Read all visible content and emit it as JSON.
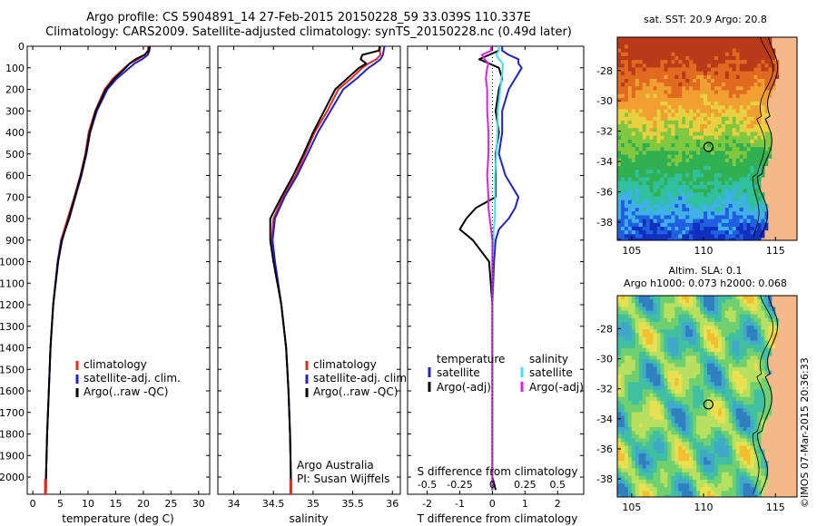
{
  "header": {
    "title_line1": "Argo profile: CS 5904891_14 27-Feb-2015 20150228_59 33.039S 110.337E",
    "title_line2": "Climatology: CARS2009. Satellite-adjusted climatology: synTS_20150228.nc (0.49d later)"
  },
  "colors": {
    "climatology": "#e8271c",
    "satellite": "#2020d0",
    "argo": "#000000",
    "salinity_satellite": "#40e0e8",
    "salinity_argo": "#e020e0"
  },
  "chart_data": [
    {
      "type": "line",
      "panel": "temperature",
      "xlabel": "temperature (deg C)",
      "ylabel": "",
      "xlim": [
        -1,
        32
      ],
      "ylim": [
        2080,
        0
      ],
      "xticks": [
        0,
        5,
        10,
        15,
        20,
        25,
        30
      ],
      "yticks": [
        0,
        100,
        200,
        300,
        400,
        500,
        600,
        700,
        800,
        900,
        1000,
        1100,
        1200,
        1300,
        1400,
        1500,
        1600,
        1700,
        1800,
        1900,
        2000
      ],
      "depths": [
        0,
        20,
        40,
        60,
        80,
        100,
        150,
        200,
        300,
        400,
        500,
        600,
        700,
        800,
        900,
        1000,
        1200,
        1400,
        1600,
        1800,
        2000,
        2060
      ],
      "legend": [
        "climatology",
        "satellite-adj. clim.",
        "Argo(..raw -QC)"
      ],
      "series": [
        {
          "name": "climatology",
          "values": [
            20.9,
            20.8,
            20.3,
            19.0,
            17.6,
            16.6,
            14.5,
            13.0,
            11.3,
            10.1,
            9.5,
            8.6,
            7.5,
            6.3,
            5.1,
            4.5,
            3.7,
            3.2,
            2.9,
            2.6,
            2.4,
            2.3
          ]
        },
        {
          "name": "satellite-adj. clim.",
          "values": [
            21.2,
            21.1,
            20.8,
            19.8,
            18.4,
            17.5,
            15.2,
            13.5,
            11.6,
            10.4,
            9.7,
            8.8,
            7.7,
            6.6,
            5.2,
            4.5,
            3.7,
            3.2,
            2.9,
            2.6,
            2.4,
            2.3
          ]
        },
        {
          "name": "Argo(..raw -QC)",
          "values": [
            21.1,
            21.0,
            20.2,
            18.6,
            17.5,
            16.8,
            14.8,
            13.2,
            11.4,
            10.3,
            9.6,
            8.7,
            7.6,
            6.5,
            5.3,
            4.6,
            3.7,
            3.2,
            2.9,
            2.6,
            2.4,
            2.4
          ]
        }
      ]
    },
    {
      "type": "line",
      "panel": "salinity",
      "xlabel": "salinity",
      "ylabel": "",
      "xlim": [
        33.8,
        36.1
      ],
      "ylim": [
        2080,
        0
      ],
      "xticks": [
        34,
        34.5,
        35,
        35.5,
        36
      ],
      "xticklabels": [
        "34",
        "34.5",
        "35",
        "35.5",
        "36"
      ],
      "depths": [
        0,
        20,
        40,
        60,
        80,
        100,
        150,
        200,
        300,
        400,
        500,
        600,
        700,
        800,
        900,
        1000,
        1200,
        1400,
        1600,
        1800,
        2000,
        2060
      ],
      "legend": [
        "climatology",
        "satellite-adj. clim.",
        "Argo(..raw -QC)"
      ],
      "series": [
        {
          "name": "climatology",
          "values": [
            35.85,
            35.84,
            35.85,
            35.8,
            35.7,
            35.62,
            35.48,
            35.32,
            35.18,
            35.02,
            34.9,
            34.78,
            34.62,
            34.5,
            34.48,
            34.52,
            34.6,
            34.66,
            34.69,
            34.71,
            34.72,
            34.72
          ]
        },
        {
          "name": "satellite-adj. clim.",
          "values": [
            35.9,
            35.89,
            35.88,
            35.85,
            35.78,
            35.7,
            35.55,
            35.38,
            35.22,
            35.06,
            34.93,
            34.8,
            34.64,
            34.52,
            34.49,
            34.52,
            34.6,
            34.66,
            34.69,
            34.71,
            34.72,
            34.72
          ]
        },
        {
          "name": "Argo(..raw -QC)",
          "values": [
            35.84,
            35.83,
            35.62,
            35.6,
            35.67,
            35.58,
            35.43,
            35.28,
            35.14,
            35.0,
            34.88,
            34.75,
            34.6,
            34.46,
            34.46,
            34.5,
            34.6,
            34.66,
            34.69,
            34.71,
            34.72,
            34.72
          ]
        }
      ]
    },
    {
      "type": "line",
      "panel": "difference",
      "xlabel": "T difference from climatology",
      "xlabel_top": "S difference from climatology",
      "xlim": [
        -2.6,
        2.8
      ],
      "ylim": [
        2080,
        0
      ],
      "xticks": [
        -2,
        -1,
        0,
        1,
        2
      ],
      "xticks_top": [
        -2,
        -1,
        0,
        1,
        2
      ],
      "xticklabels_top": [
        "-0.5",
        "-0.25",
        "0",
        "0.25",
        "0.5"
      ],
      "s_scale": 4,
      "depths": [
        0,
        20,
        40,
        60,
        80,
        100,
        150,
        200,
        300,
        400,
        500,
        600,
        700,
        750,
        800,
        850,
        900,
        1000,
        1200,
        1400,
        1600,
        1800,
        2000,
        2060
      ],
      "legend_temperature_title": "temperature",
      "legend_salinity_title": "salinity",
      "legend_temperature": [
        "satellite",
        "Argo(-adj)"
      ],
      "legend_salinity": [
        "satellite",
        "Argo(-adj)"
      ],
      "series": [
        {
          "name": "temperature satellite",
          "values": [
            0.3,
            0.3,
            0.5,
            0.8,
            0.8,
            0.9,
            0.7,
            0.5,
            0.3,
            0.3,
            0.2,
            0.4,
            0.8,
            0.7,
            0.5,
            0.2,
            0.1,
            0.05,
            0,
            0,
            0,
            0,
            0,
            0
          ]
        },
        {
          "name": "temperature Argo(-adj)",
          "values": [
            0.2,
            0.2,
            -0.1,
            -0.4,
            -0.1,
            0.2,
            0.3,
            0.2,
            0.1,
            0.2,
            0.1,
            0.1,
            0.1,
            -0.5,
            -0.8,
            -1.0,
            -0.6,
            -0.1,
            0,
            0,
            0,
            0,
            0,
            0.1
          ]
        },
        {
          "name": "salinity satellite",
          "values": [
            0.05,
            0.05,
            0.03,
            0.05,
            0.08,
            0.08,
            0.07,
            0.06,
            0.04,
            0.04,
            0.03,
            0.02,
            0.02,
            0.02,
            0.02,
            0.01,
            0.01,
            0,
            0,
            0,
            0,
            0,
            0,
            0
          ]
        },
        {
          "name": "salinity Argo(-adj)",
          "values": [
            -0.01,
            -0.01,
            -0.08,
            -0.06,
            -0.03,
            -0.04,
            -0.05,
            -0.04,
            -0.04,
            -0.03,
            -0.03,
            -0.04,
            -0.03,
            -0.03,
            -0.02,
            -0.01,
            0,
            0,
            0,
            0,
            0,
            0,
            0,
            0
          ]
        }
      ]
    },
    {
      "type": "heatmap",
      "panel": "sst_map",
      "title": "sat. SST: 20.9 Argo: 20.8",
      "xlim": [
        104,
        116.5
      ],
      "ylim": [
        -39.2,
        -25.8
      ],
      "xticks": [
        105,
        110,
        115
      ],
      "yticks": [
        -28,
        -30,
        -32,
        -34,
        -36,
        -38
      ],
      "argo_position": {
        "lon": 110.337,
        "lat": -33.039
      }
    },
    {
      "type": "heatmap",
      "panel": "sla_map",
      "title_line1": "Altim. SLA: 0.1",
      "title_line2": "Argo h1000: 0.073 h2000: 0.068",
      "xlim": [
        104,
        116.5
      ],
      "ylim": [
        -39.2,
        -25.8
      ],
      "xticks": [
        105,
        110,
        115
      ],
      "yticks": [
        -28,
        -30,
        -32,
        -34,
        -36,
        -38
      ],
      "argo_position": {
        "lon": 110.337,
        "lat": -33.039
      }
    }
  ],
  "profile_annotations": {
    "line1": "Argo Australia",
    "line2": "PI: Susan Wijffels"
  },
  "stamp": "©IMOS 07-Mar-2015 20:36:33"
}
